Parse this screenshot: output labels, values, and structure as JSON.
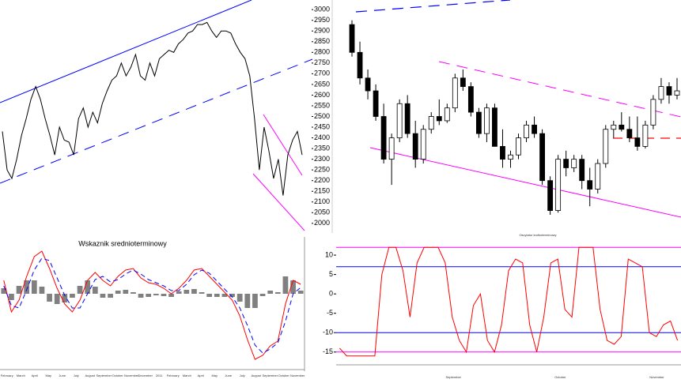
{
  "chart_data": [
    {
      "type": "line",
      "ylim": [
        1955,
        3045
      ],
      "series": [
        {
          "color": "#000000",
          "values": [
            2430,
            2250,
            2210,
            2300,
            2410,
            2490,
            2580,
            2640,
            2580,
            2490,
            2410,
            2320,
            2450,
            2390,
            2380,
            2320,
            2490,
            2540,
            2450,
            2520,
            2470,
            2560,
            2620,
            2670,
            2690,
            2750,
            2690,
            2730,
            2790,
            2690,
            2670,
            2750,
            2690,
            2770,
            2790,
            2810,
            2800,
            2840,
            2860,
            2890,
            2900,
            2930,
            2930,
            2940,
            2900,
            2870,
            2900,
            2900,
            2890,
            2840,
            2800,
            2770,
            2690,
            2490,
            2250,
            2450,
            2340,
            2210,
            2300,
            2130,
            2320,
            2390,
            2430,
            2320
          ]
        }
      ]
    },
    {
      "type": "candlestick",
      "ylim": [
        1955,
        3045
      ],
      "yticks": [
        2000,
        2050,
        2100,
        2150,
        2200,
        2250,
        2300,
        2350,
        2400,
        2450,
        2500,
        2550,
        2600,
        2650,
        2700,
        2750,
        2800,
        2850,
        2900,
        2950,
        3000
      ],
      "up_color": "#ffffff",
      "down_color": "#000000",
      "open": [
        2930,
        2800,
        2680,
        2620,
        2500,
        2300,
        2400,
        2560,
        2420,
        2300,
        2440,
        2500,
        2480,
        2540,
        2680,
        2640,
        2520,
        2420,
        2540,
        2360,
        2300,
        2320,
        2400,
        2460,
        2420,
        2200,
        2060,
        2300,
        2260,
        2300,
        2200,
        2160,
        2280,
        2440,
        2460,
        2440,
        2400,
        2360,
        2460,
        2580,
        2640,
        2600
      ],
      "high": [
        2950,
        2850,
        2720,
        2650,
        2560,
        2420,
        2580,
        2600,
        2480,
        2460,
        2520,
        2580,
        2560,
        2700,
        2720,
        2660,
        2540,
        2560,
        2560,
        2440,
        2340,
        2420,
        2480,
        2500,
        2440,
        2220,
        2320,
        2340,
        2320,
        2320,
        2260,
        2300,
        2460,
        2480,
        2520,
        2500,
        2500,
        2480,
        2600,
        2680,
        2660,
        2680
      ],
      "low": [
        2780,
        2650,
        2580,
        2480,
        2280,
        2180,
        2380,
        2400,
        2260,
        2280,
        2420,
        2460,
        2470,
        2520,
        2620,
        2500,
        2400,
        2380,
        2360,
        2260,
        2260,
        2300,
        2380,
        2400,
        2180,
        2040,
        2050,
        2220,
        2240,
        2160,
        2080,
        2140,
        2260,
        2400,
        2430,
        2380,
        2340,
        2350,
        2440,
        2560,
        2560,
        2580
      ],
      "close": [
        2800,
        2680,
        2620,
        2500,
        2300,
        2400,
        2560,
        2420,
        2300,
        2440,
        2500,
        2480,
        2540,
        2680,
        2640,
        2520,
        2420,
        2540,
        2360,
        2300,
        2320,
        2400,
        2460,
        2420,
        2200,
        2060,
        2300,
        2260,
        2300,
        2200,
        2160,
        2280,
        2440,
        2460,
        2440,
        2400,
        2360,
        2460,
        2580,
        2640,
        2600,
        2620
      ]
    },
    {
      "type": "line",
      "title": "Wskaznik srednioterminowy",
      "ylim": [
        -96,
        62
      ],
      "series": [
        {
          "type": "bar",
          "color": "#808080",
          "values": [
            7,
            -8,
            10,
            17,
            17,
            9,
            -10,
            -13,
            -11,
            -5,
            10,
            17,
            9,
            -5,
            -5,
            4,
            5,
            2,
            -5,
            -4,
            -2,
            -3,
            -4,
            3,
            5,
            6,
            2,
            -4,
            -4,
            -4,
            -4,
            -10,
            -18,
            -18,
            -3,
            4,
            2,
            22,
            17,
            4
          ]
        },
        {
          "color": "#ff0000",
          "values": [
            17,
            -23,
            -8,
            22,
            47,
            54,
            32,
            7,
            -13,
            -23,
            -8,
            17,
            27,
            17,
            10,
            22,
            30,
            32,
            20,
            14,
            12,
            7,
            0,
            7,
            17,
            30,
            32,
            22,
            12,
            2,
            -8,
            -28,
            -58,
            -83,
            -78,
            -66,
            -60,
            -13,
            17,
            12
          ]
        },
        {
          "color": "#0000ff",
          "dash": true,
          "values": [
            10,
            -15,
            -18,
            5,
            30,
            45,
            42,
            20,
            -2,
            -18,
            -18,
            0,
            18,
            22,
            15,
            18,
            25,
            30,
            25,
            18,
            14,
            10,
            4,
            4,
            12,
            24,
            30,
            26,
            16,
            6,
            -4,
            -18,
            -40,
            -65,
            -75,
            -70,
            -62,
            -35,
            0,
            8
          ]
        }
      ],
      "xlabels": [
        "February",
        "March",
        "April",
        "May",
        "June",
        "July",
        "August",
        "September",
        "October",
        "November",
        "December",
        "2011",
        "February",
        "March",
        "April",
        "May",
        "June",
        "July",
        "August",
        "September",
        "October",
        "November"
      ]
    },
    {
      "type": "line",
      "title": "Oscylator krotkoterminowy",
      "ylim": [
        -18.3,
        14.7
      ],
      "yticks": [
        10,
        5,
        0,
        -5,
        -10,
        -15
      ],
      "levels": [
        {
          "value": 12,
          "color": "#ff00ff"
        },
        {
          "value": 7,
          "color": "#0000ff"
        },
        {
          "value": -10,
          "color": "#0000ff"
        },
        {
          "value": -15,
          "color": "#ff00ff"
        }
      ],
      "series": [
        {
          "color": "#ff0000",
          "values": [
            -14,
            -16,
            -16,
            -16,
            -16,
            -16,
            5,
            12,
            12,
            6,
            -6,
            8,
            12,
            12,
            12,
            8,
            -6,
            -12,
            -15,
            -3,
            0,
            -12,
            -15,
            -8,
            6,
            9,
            8,
            -8,
            -15,
            -6,
            8,
            9,
            -4,
            -6,
            12,
            12,
            12,
            -4,
            -12,
            -13,
            -11,
            9,
            8,
            7,
            -10,
            -11,
            -8,
            -7,
            -12
          ]
        }
      ],
      "xlabels": [
        "September",
        "October",
        "November"
      ]
    }
  ]
}
